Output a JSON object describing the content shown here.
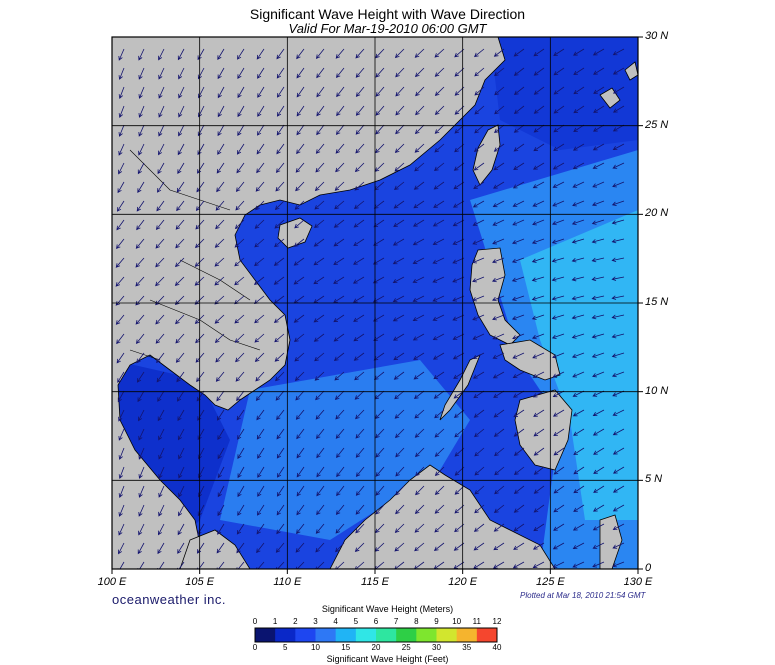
{
  "header": {
    "title": "Significant Wave Height with Wave Direction",
    "subtitle": "Valid For Mar-19-2010 06:00 GMT"
  },
  "lat_labels": [
    "30 N",
    "25 N",
    "20 N",
    "15 N",
    "10 N",
    "5 N",
    "0"
  ],
  "lon_labels": [
    "100 E",
    "105 E",
    "110 E",
    "115 E",
    "120 E",
    "125 E",
    "130 E"
  ],
  "footer": {
    "brand": "oceanweather inc.",
    "plotted": "Plotted at Mar 18, 2010 21:54 GMT"
  },
  "colorbar": {
    "top_title": "Significant Wave Height (Meters)",
    "bottom_title": "Significant Wave Height (Feet)",
    "meters_ticks": [
      "0",
      "1",
      "2",
      "3",
      "4",
      "5",
      "6",
      "7",
      "8",
      "9",
      "10",
      "11",
      "12"
    ],
    "feet_ticks": [
      "0",
      "5",
      "10",
      "15",
      "20",
      "25",
      "30",
      "35",
      "40"
    ],
    "colors": [
      "#0a1470",
      "#0a28c8",
      "#1e46f0",
      "#2e78f5",
      "#20b4f5",
      "#30e6e6",
      "#2ee6a0",
      "#2ecf46",
      "#7ee62e",
      "#d2e62e",
      "#f5b42e",
      "#f5462e"
    ]
  },
  "map_colors": {
    "land": "#c0c0c0",
    "deep": "#0a28c8",
    "mid": "#1e55e6",
    "light": "#2e8cf5",
    "cyan": "#30bef5",
    "arrow": "#14146e"
  }
}
